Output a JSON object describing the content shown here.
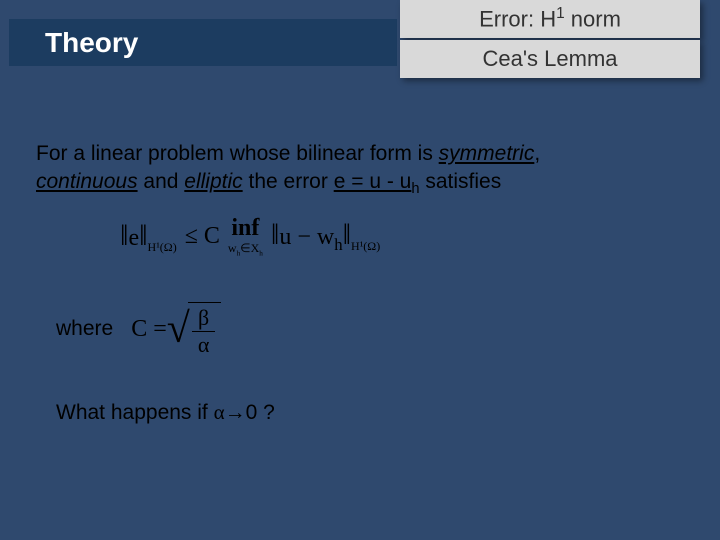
{
  "colors": {
    "slide_bg": "#2f496e",
    "title_bg": "#1c3c60",
    "box_bg": "#d9d9d9",
    "title_text": "#ffffff",
    "body_text": "#000000"
  },
  "title": "Theory",
  "subtitle1_prefix": "Error: H",
  "subtitle1_sup": "1",
  "subtitle1_suffix": " norm",
  "subtitle2": "Cea's Lemma",
  "body": {
    "l1a": "For a linear problem whose bilinear form is ",
    "l1b": "symmetric",
    "l1c": ", ",
    "l2a": "continuous",
    "l2b": " and ",
    "l2c": "elliptic",
    "l2d": " the error ",
    "l2e": "e = u - u",
    "l2f": "h",
    "l2g": " satisfies"
  },
  "formula": {
    "norm_e_pre": "e",
    "norm_space": "H¹(Ω)",
    "le": " ≤ C ",
    "inf": "inf",
    "inf_sub_a": "w",
    "inf_sub_h": "h",
    "inf_sub_b": "∈X",
    "inf_sub_h2": "h",
    "norm_u_pre": "u − w",
    "norm_u_h": "h"
  },
  "where": {
    "label": "where",
    "C": "C = ",
    "beta": "β",
    "alpha": "α"
  },
  "question": {
    "a": "What happens if ",
    "b": "α",
    "c": "→",
    "d": "0 ?"
  }
}
